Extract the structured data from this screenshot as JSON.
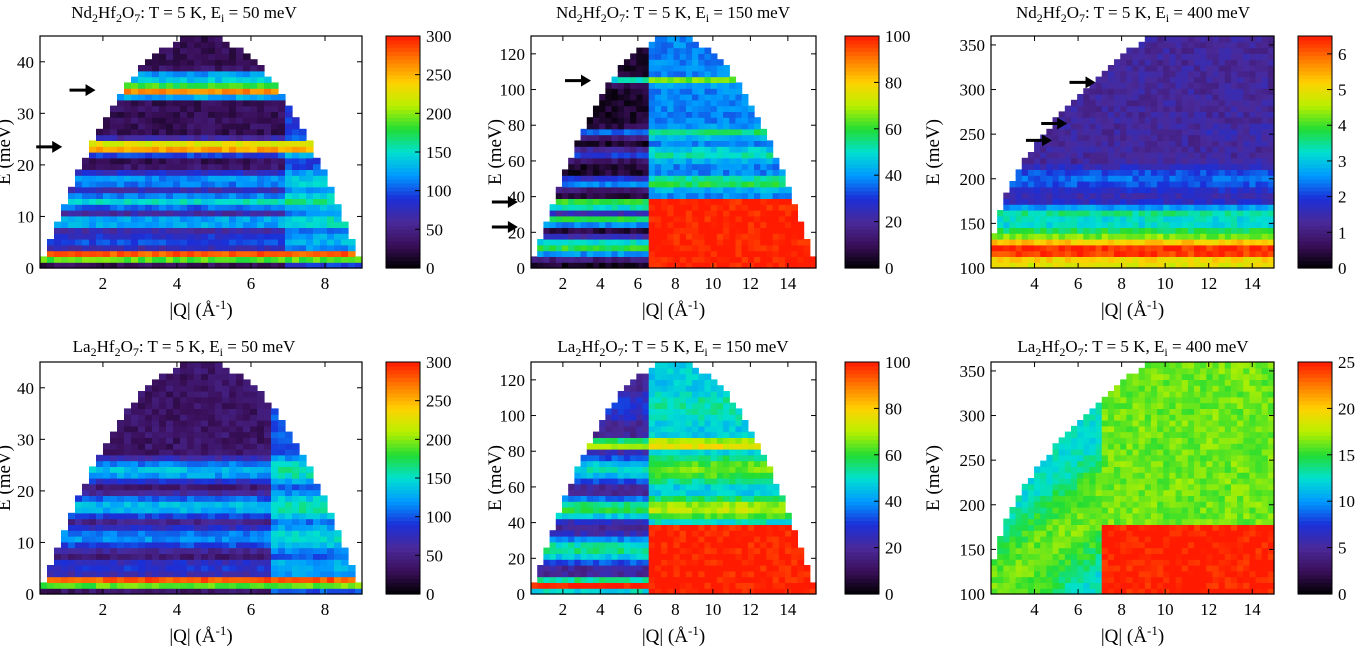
{
  "chart_data": [
    {
      "type": "heatmap",
      "title": {
        "pre": "Nd",
        "s1": "2",
        "mid1": "Hf",
        "s2": "2",
        "mid2": "O",
        "s3": "7",
        "post": ": T = 5 K, E",
        "s4": "i",
        "tail": " = 50 meV"
      },
      "xlabel": {
        "pre": "|Q| (Å",
        "sup": "-1",
        "post": ")"
      },
      "ylabel": "E (meV)",
      "xlim": [
        0.3,
        9.0
      ],
      "ylim": [
        0,
        45
      ],
      "xticks": [
        2,
        4,
        6,
        8
      ],
      "yticks": [
        0,
        10,
        20,
        30,
        40
      ],
      "colorbar": {
        "min": 0,
        "max": 300,
        "ticks": [
          0,
          50,
          100,
          150,
          200,
          250,
          300
        ]
      },
      "arrows": [
        {
          "q": 1.8,
          "e": 34.5
        },
        {
          "q": 0.9,
          "e": 23.5
        }
      ],
      "bands": [
        {
          "e": 2.5,
          "width": 1.2,
          "level": 1.0
        },
        {
          "e": 5.5,
          "width": 1.5,
          "level": 0.35
        },
        {
          "e": 9,
          "width": 2,
          "level": 0.45
        },
        {
          "e": 13,
          "width": 2,
          "level": 0.5
        },
        {
          "e": 17,
          "width": 2.5,
          "level": 0.4
        },
        {
          "e": 23.5,
          "width": 1.5,
          "level": 0.92
        },
        {
          "e": 34.5,
          "width": 1.5,
          "level": 0.9
        },
        {
          "e": 37,
          "width": 1.5,
          "level": 0.5
        }
      ],
      "background_level": 0.1,
      "high_q_level": 0.7,
      "high_q_start": 7.0
    },
    {
      "type": "heatmap",
      "title": {
        "pre": "Nd",
        "s1": "2",
        "mid1": "Hf",
        "s2": "2",
        "mid2": "O",
        "s3": "7",
        "post": ": T = 5 K, E",
        "s4": "i",
        "tail": " = 150 meV"
      },
      "xlabel": {
        "pre": "|Q| (Å",
        "sup": "-1",
        "post": ")"
      },
      "ylabel": "E (meV)",
      "xlim": [
        0.3,
        15.5
      ],
      "ylim": [
        0,
        130
      ],
      "xticks": [
        2,
        4,
        6,
        8,
        10,
        12,
        14
      ],
      "yticks": [
        0,
        20,
        40,
        60,
        80,
        100,
        120
      ],
      "colorbar": {
        "min": 0,
        "max": 100,
        "ticks": [
          0,
          20,
          40,
          60,
          80,
          100
        ]
      },
      "arrows": [
        {
          "q": 3.5,
          "e": 105
        },
        {
          "q": -0.4,
          "e": 37
        },
        {
          "q": -0.4,
          "e": 23
        }
      ],
      "bands": [
        {
          "e": 105,
          "width": 2,
          "level": 0.55
        },
        {
          "e": 76,
          "width": 3,
          "level": 0.35
        },
        {
          "e": 64,
          "width": 4,
          "level": 0.3
        },
        {
          "e": 48,
          "width": 4,
          "level": 0.4
        },
        {
          "e": 36,
          "width": 3,
          "level": 0.75
        },
        {
          "e": 27,
          "width": 4,
          "level": 0.6
        },
        {
          "e": 12,
          "width": 6,
          "level": 0.6
        }
      ],
      "background_level": 0.05,
      "high_q_level": 1.0,
      "high_q_start": 6.5,
      "red_floor": 40
    },
    {
      "type": "heatmap",
      "title": {
        "pre": "Nd",
        "s1": "2",
        "mid1": "Hf",
        "s2": "2",
        "mid2": "O",
        "s3": "7",
        "post": ": T = 5 K, E",
        "s4": "i",
        "tail": " = 400 meV"
      },
      "xlabel": {
        "pre": "|Q| (Å",
        "sup": "-1",
        "post": ")"
      },
      "ylabel": "E (meV)",
      "xlim": [
        2.0,
        15.0
      ],
      "ylim": [
        100,
        360
      ],
      "xticks": [
        4,
        6,
        8,
        10,
        12,
        14
      ],
      "yticks": [
        100,
        150,
        200,
        250,
        300,
        350
      ],
      "colorbar": {
        "min": 0,
        "max": 6.5,
        "ticks": [
          0,
          1,
          2,
          3,
          4,
          5,
          6
        ]
      },
      "arrows": [
        {
          "q": 6.8,
          "e": 308
        },
        {
          "q": 5.5,
          "e": 262
        },
        {
          "q": 4.8,
          "e": 243
        }
      ],
      "bands": [
        {
          "e": 120,
          "width": 20,
          "level": 1.0
        },
        {
          "e": 160,
          "width": 15,
          "level": 0.55
        },
        {
          "e": 200,
          "width": 25,
          "level": 0.35
        },
        {
          "e": 250,
          "width": 30,
          "level": 0.2
        }
      ],
      "background_level": 0.1,
      "high_q_level": 0.3,
      "high_q_start": 12
    },
    {
      "type": "heatmap",
      "title": {
        "pre": "La",
        "s1": "2",
        "mid1": "Hf",
        "s2": "2",
        "mid2": "O",
        "s3": "7",
        "post": ": T = 5 K, E",
        "s4": "i",
        "tail": " = 50 meV"
      },
      "xlabel": {
        "pre": "|Q| (Å",
        "sup": "-1",
        "post": ")"
      },
      "ylabel": "E (meV)",
      "xlim": [
        0.3,
        9.0
      ],
      "ylim": [
        0,
        45
      ],
      "xticks": [
        2,
        4,
        6,
        8
      ],
      "yticks": [
        0,
        10,
        20,
        30,
        40
      ],
      "colorbar": {
        "min": 0,
        "max": 300,
        "ticks": [
          0,
          50,
          100,
          150,
          200,
          250,
          300
        ]
      },
      "arrows": [],
      "bands": [
        {
          "e": 2.5,
          "width": 1.2,
          "level": 1.0
        },
        {
          "e": 5.5,
          "width": 2,
          "level": 0.3
        },
        {
          "e": 11,
          "width": 3,
          "level": 0.4
        },
        {
          "e": 17,
          "width": 3,
          "level": 0.45
        },
        {
          "e": 24,
          "width": 3,
          "level": 0.45
        }
      ],
      "background_level": 0.12,
      "high_q_level": 0.75,
      "high_q_start": 6.5
    },
    {
      "type": "heatmap",
      "title": {
        "pre": "La",
        "s1": "2",
        "mid1": "Hf",
        "s2": "2",
        "mid2": "O",
        "s3": "7",
        "post": ": T = 5 K, E",
        "s4": "i",
        "tail": " = 150 meV"
      },
      "xlabel": {
        "pre": "|Q| (Å",
        "sup": "-1",
        "post": ")"
      },
      "ylabel": "E (meV)",
      "xlim": [
        0.3,
        15.5
      ],
      "ylim": [
        0,
        130
      ],
      "xticks": [
        2,
        4,
        6,
        8,
        10,
        12,
        14
      ],
      "yticks": [
        0,
        20,
        40,
        60,
        80,
        100,
        120
      ],
      "colorbar": {
        "min": 0,
        "max": 100,
        "ticks": [
          0,
          20,
          40,
          60,
          80,
          100
        ]
      },
      "arrows": [],
      "bands": [
        {
          "e": 5,
          "width": 4,
          "level": 1.0
        },
        {
          "e": 25,
          "width": 10,
          "level": 0.55
        },
        {
          "e": 48,
          "width": 8,
          "level": 0.6
        },
        {
          "e": 70,
          "width": 10,
          "level": 0.5
        },
        {
          "e": 84,
          "width": 4,
          "level": 0.75
        },
        {
          "e": 105,
          "width": 15,
          "level": 0.3
        }
      ],
      "background_level": 0.2,
      "high_q_level": 1.0,
      "high_q_start": 6.5,
      "red_floor": 40
    },
    {
      "type": "heatmap",
      "title": {
        "pre": "La",
        "s1": "2",
        "mid1": "Hf",
        "s2": "2",
        "mid2": "O",
        "s3": "7",
        "post": ": T = 5 K, E",
        "s4": "i",
        "tail": " = 400 meV"
      },
      "xlabel": {
        "pre": "|Q| (Å",
        "sup": "-1",
        "post": ")"
      },
      "ylabel": "E (meV)",
      "xlim": [
        2.0,
        15.0
      ],
      "ylim": [
        100,
        360
      ],
      "xticks": [
        4,
        6,
        8,
        10,
        12,
        14
      ],
      "yticks": [
        100,
        150,
        200,
        250,
        300,
        350
      ],
      "colorbar": {
        "min": 0,
        "max": 25,
        "ticks": [
          0,
          5,
          10,
          15,
          20,
          25
        ]
      },
      "arrows": [],
      "bands": [],
      "background_level": 0.5,
      "high_q_level": 1.0,
      "high_q_start": 7.0,
      "red_floor": 180
    }
  ],
  "colormap": [
    "#000000",
    "#3a0f5a",
    "#4a2a9a",
    "#1b2fd8",
    "#0099ff",
    "#00e0d0",
    "#22dd33",
    "#b8f000",
    "#ffd200",
    "#ff7a00",
    "#ff1a00"
  ]
}
